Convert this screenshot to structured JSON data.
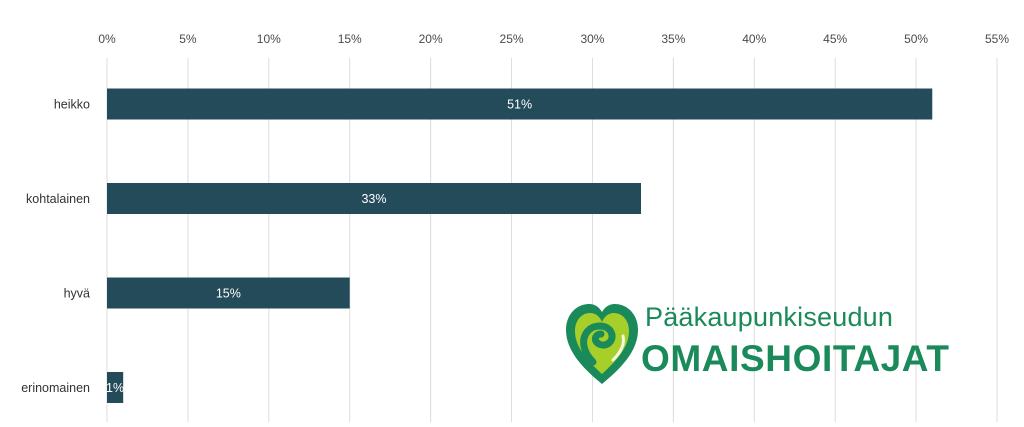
{
  "chart_data": {
    "type": "bar",
    "orientation": "horizontal",
    "categories": [
      "heikko",
      "kohtalainen",
      "hyvä",
      "erinomainen"
    ],
    "values": [
      51,
      33,
      15,
      1
    ],
    "data_labels": [
      "51%",
      "33%",
      "15%",
      "1%"
    ],
    "x_ticks": [
      "0%",
      "5%",
      "10%",
      "15%",
      "20%",
      "25%",
      "30%",
      "35%",
      "40%",
      "45%",
      "50%",
      "55%"
    ],
    "xlim": [
      0,
      55
    ],
    "x_axis_position": "top",
    "grid": true,
    "bar_color": "#244b5a",
    "grid_color": "#dcdcdc"
  },
  "logo": {
    "line1": "Pääkaupunkiseudun",
    "line2": "OMAISHOITAJAT",
    "color": "#1a8a5a",
    "accent": "#a7cf2a"
  }
}
